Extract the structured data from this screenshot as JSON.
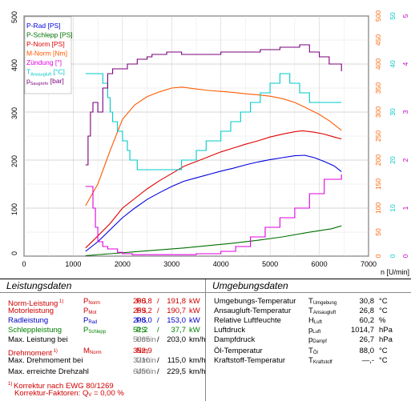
{
  "chart_data": {
    "type": "line",
    "xlabel": "n [U/min]",
    "xlim": [
      0,
      7000
    ],
    "x_ticks": [
      "0",
      "1000",
      "2000",
      "3000",
      "4000",
      "5000",
      "6000",
      "7000"
    ],
    "y_left": {
      "lim": [
        0,
        500
      ],
      "ticks": [
        "0",
        "100",
        "200",
        "300",
        "400",
        "500"
      ]
    },
    "y_axes_right": [
      {
        "name": "temp_red",
        "color": "#ff6000",
        "lim": [
          0,
          500
        ],
        "ticks": [
          "0",
          "50",
          "100",
          "150",
          "200",
          "250",
          "300",
          "350",
          "400",
          "450",
          "500"
        ]
      },
      {
        "name": "temp_cyan",
        "color": "#00c8c8",
        "lim": [
          0,
          50
        ],
        "ticks": [
          "0",
          "10",
          "20",
          "30",
          "40",
          "50"
        ]
      },
      {
        "name": "pressure",
        "color": "#c000c0",
        "lim": [
          0,
          5
        ],
        "ticks": [
          "0",
          "1",
          "2",
          "3",
          "4",
          "5"
        ]
      }
    ],
    "legend": [
      "P-Rad [PS]",
      "P-Schlepp [PS]",
      "P-Norm [PS]",
      "M-Norm [Nm]",
      "Zündung [°]",
      "T_Ansaugluft [°C]",
      "p_Saugrohr [bar]"
    ],
    "series": [
      {
        "name": "P-Rad [PS]",
        "color": "#0000e0",
        "x": [
          1250,
          1500,
          1750,
          2000,
          2250,
          2500,
          2750,
          3000,
          3250,
          3500,
          3750,
          4000,
          4250,
          4500,
          4750,
          5000,
          5250,
          5500,
          5700,
          5900,
          6100,
          6300,
          6450
        ],
        "y": [
          10,
          30,
          55,
          80,
          100,
          118,
          132,
          145,
          156,
          163,
          170,
          177,
          183,
          190,
          196,
          201,
          205,
          209,
          210,
          205,
          197,
          188,
          176
        ]
      },
      {
        "name": "P-Schlepp [PS]",
        "color": "#007000",
        "x": [
          1250,
          1750,
          2250,
          2750,
          3250,
          3750,
          4250,
          4750,
          5250,
          5750,
          6250,
          6450
        ],
        "y": [
          1,
          5,
          9,
          13,
          17,
          22,
          27,
          33,
          40,
          49,
          57,
          63
        ]
      },
      {
        "name": "P-Norm [PS]",
        "color": "#e00000",
        "x": [
          1250,
          1500,
          1750,
          2000,
          2250,
          2500,
          2750,
          3000,
          3250,
          3500,
          3750,
          4000,
          4250,
          4500,
          4750,
          5000,
          5250,
          5500,
          5650,
          5900,
          6100,
          6300,
          6450
        ],
        "y": [
          17,
          42,
          68,
          100,
          120,
          140,
          157,
          172,
          187,
          197,
          207,
          217,
          225,
          233,
          240,
          248,
          254,
          259,
          261,
          258,
          254,
          248,
          244
        ]
      },
      {
        "name": "M-Norm [Nm]",
        "color": "#ff5a00",
        "x": [
          1250,
          1500,
          1750,
          2000,
          2250,
          2500,
          2750,
          3000,
          3210,
          3500,
          3750,
          4000,
          4250,
          4500,
          4750,
          5000,
          5250,
          5500,
          5750,
          6000,
          6200,
          6450
        ],
        "y": [
          105,
          150,
          220,
          285,
          315,
          332,
          342,
          350,
          352,
          348,
          345,
          343,
          341,
          338,
          336,
          333,
          328,
          320,
          308,
          295,
          282,
          262
        ]
      },
      {
        "name": "T_Ansaugluft [°C]",
        "color": "#00c8c8",
        "axis": "temp_cyan",
        "x": [
          1250,
          1550,
          1600,
          1700,
          1750,
          1800,
          1900,
          2000,
          2100,
          2150,
          2300,
          2500,
          2700,
          2900,
          3200,
          3500,
          3700,
          4000,
          4200,
          4400,
          4600,
          4800,
          5000,
          5200,
          5400,
          5600,
          5800,
          6000,
          6450
        ],
        "y": [
          38,
          38,
          36,
          33,
          30,
          28,
          26,
          24,
          22,
          20,
          18,
          18,
          18,
          18,
          20,
          22,
          24,
          26,
          28,
          30,
          32,
          34,
          36,
          38,
          36,
          34,
          32,
          32,
          32
        ]
      },
      {
        "name": "p_Saugrohr [bar]",
        "color": "#7a007a",
        "axis": "pressure",
        "x": [
          1250,
          1300,
          1350,
          1400,
          1500,
          1600,
          1700,
          1800,
          2000,
          2100,
          2300,
          2500,
          2600,
          2900,
          3200,
          3600,
          4000,
          4400,
          4800,
          5200,
          5600,
          5800,
          6000,
          6200,
          6450
        ],
        "y": [
          1.9,
          2.5,
          3.0,
          3.2,
          3.0,
          3.5,
          3.8,
          3.9,
          3.9,
          4.0,
          4.1,
          4.15,
          4.2,
          4.25,
          4.2,
          4.2,
          4.25,
          4.25,
          4.3,
          4.35,
          4.4,
          4.25,
          4.15,
          4.0,
          3.85
        ]
      },
      {
        "name": "Zündung [°]",
        "color": "#e000e0",
        "axis": "temp_cyan",
        "x": [
          1250,
          1350,
          1400,
          1450,
          1500,
          1600,
          1700,
          1750,
          1900,
          2000,
          2200,
          3000,
          3500,
          4000,
          4300,
          4600,
          4900,
          5200,
          5500,
          5800,
          6100,
          6450
        ],
        "y": [
          14.5,
          14.5,
          10,
          6,
          3,
          2,
          1.5,
          1.5,
          0.8,
          0.5,
          0.3,
          0.3,
          0.5,
          1,
          2,
          4,
          6,
          8,
          10,
          13,
          16,
          17
        ]
      }
    ]
  },
  "left_table": {
    "title": "Leistungsdaten",
    "rows": [
      {
        "label": "Norm-Leistung",
        "sup": "1)",
        "sym": "P",
        "sub": "Norm",
        "v1": "260,8",
        "u1": "PS",
        "sl": "/",
        "v2": "191,8",
        "u2": "kW"
      },
      {
        "label": "Motorleistung",
        "sym": "P",
        "sub": "Mot",
        "v1": "259,2",
        "u1": "PS",
        "sl": "/",
        "v2": "190,7",
        "u2": "kW"
      },
      {
        "label": "Radleistung",
        "sym": "P",
        "sub": "Rad",
        "v1": "208,0",
        "u1": "PS",
        "sl": "/",
        "v2": "153,0",
        "u2": "kW"
      },
      {
        "label": "Schleppleistung",
        "sym": "P",
        "sub": "Schlepp",
        "v1": "51,2",
        "u1": "PS",
        "sl": "/",
        "v2": "37,7",
        "u2": "kW"
      },
      {
        "label": "Max. Leistung bei",
        "v1": "5665",
        "u1": "U/min",
        "sl": "/",
        "v2": "203,0",
        "u2": "km/h"
      },
      {
        "label": "Drehmoment",
        "sup": "1)",
        "sym": "M",
        "sub": "Norm",
        "v1": "352,9",
        "u1": "Nm"
      },
      {
        "label": "Max. Drehmoment bei",
        "v1": "3210",
        "u1": "U/min",
        "sl": "/",
        "v2": "115,0",
        "u2": "km/h"
      },
      {
        "label": "Max. erreichte Drehzahl",
        "v1": "6450",
        "u1": "U/min",
        "sl": "/",
        "v2": "229,5",
        "u2": "km/h"
      }
    ],
    "note1_sup": "1)",
    "note1": "Korrektur nach EWG 80/1269",
    "note2": "Korrektur-Faktoren:",
    "note2_sym": "Q",
    "note2_sub": "V",
    "note2_val": "=   0,00 %"
  },
  "right_table": {
    "title": "Umgebungsdaten",
    "rows": [
      {
        "label": "Umgebungs-Temperatur",
        "sym": "T",
        "sub": "Umgebung",
        "val": "30,8",
        "unit": "°C"
      },
      {
        "label": "Ansaugluft-Temperatur",
        "sym": "T",
        "sub": "Ansaugluft",
        "val": "26,8",
        "unit": "°C"
      },
      {
        "label": "Relative Luftfeuchte",
        "sym": "H",
        "sub": "Luft",
        "val": "60,2",
        "unit": "%"
      },
      {
        "label": "Luftdruck",
        "sym": "p",
        "sub": "Luft",
        "val": "1014,7",
        "unit": "hPa"
      },
      {
        "label": "Dampfdruck",
        "sym": "p",
        "sub": "Dampf",
        "val": "26,7",
        "unit": "hPa"
      },
      {
        "label": "Öl-Temperatur",
        "sym": "T",
        "sub": "Öl",
        "val": "88,0",
        "unit": "°C"
      },
      {
        "label": "Kraftstoff-Temperatur",
        "sym": "T",
        "sub": "Kraftstoff",
        "val": "—,-",
        "unit": "°C"
      }
    ]
  }
}
